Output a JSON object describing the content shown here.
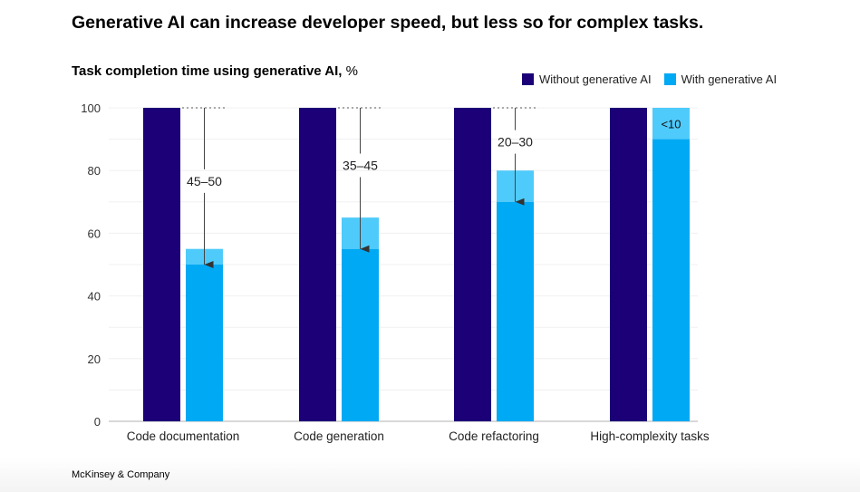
{
  "title": "Generative AI can increase developer speed, but less so for complex tasks.",
  "footer": "McKinsey & Company",
  "chart_data": {
    "type": "bar",
    "title": "Task completion time using generative AI,",
    "unit": "%",
    "categories": [
      "Code documentation",
      "Code generation",
      "Code refactoring",
      "High-complexity tasks"
    ],
    "series": [
      {
        "name": "Without generative AI",
        "values": [
          100,
          100,
          100,
          100
        ],
        "color": "#1b0077"
      },
      {
        "name": "With generative AI",
        "values": [
          50,
          55,
          70,
          90
        ],
        "range_top": [
          55,
          65,
          80,
          100
        ],
        "color": "#00a9f4",
        "range_color": "#4fcbfb"
      }
    ],
    "reduction_labels": [
      "45–50",
      "35–45",
      "20–30",
      "<10"
    ],
    "ylim": [
      0,
      100
    ],
    "yticks": [
      0,
      20,
      40,
      60,
      80,
      100
    ],
    "grid": true,
    "legend": "top-right"
  }
}
